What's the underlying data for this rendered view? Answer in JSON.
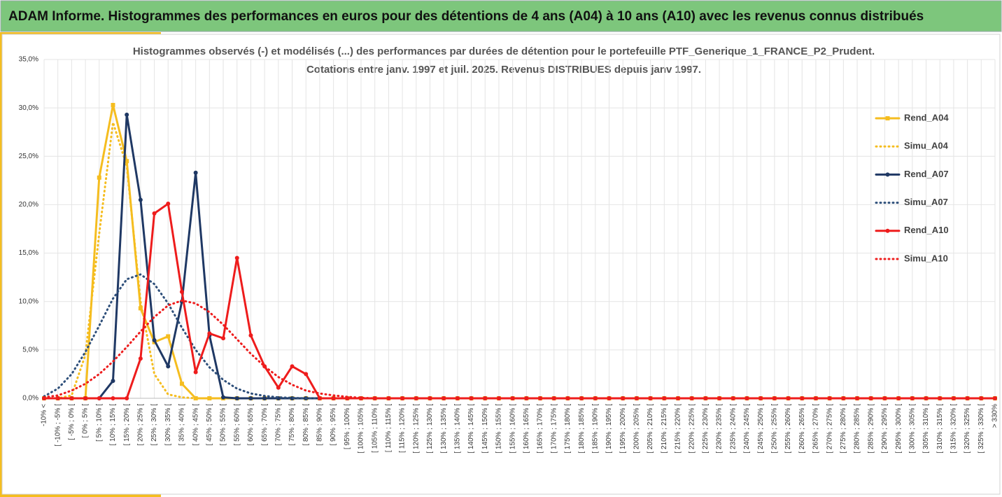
{
  "header": {
    "title": "ADAM Informe. Histogrammes des performances en euros pour des détentions de 4 ans (A04) à 10 ans (A10) avec les revenus connus distribués"
  },
  "chart_data": {
    "type": "line",
    "title": "Histogrammes observés (-) et modélisés (...) des performances par durées de détention pour le portefeuille PTF_Generique_1_FRANCE_P2_Prudent.",
    "subtitle": "Cotations entre janv. 1997 et juil. 2025. Revenus DISTRIBUES depuis janv 1997.",
    "categories": [
      "-10% <",
      "[ -10% ; -5% [",
      "[ -5% ; 0% [",
      "[ 0% ; 5% [",
      "[ 5% ; 10% [",
      "[ 10% ; 15% [",
      "[ 15% ; 20% [",
      "[ 20% ; 25% [",
      "[ 25% ; 30% [",
      "[ 30% ; 35% [",
      "[ 35% ; 40% [",
      "[ 40% ; 45% [",
      "[ 45% ; 50% [",
      "[ 50% ; 55% [",
      "[ 55% ; 60% [",
      "[ 60% ; 65% [",
      "[ 65% ; 70% [",
      "[ 70% ; 75% [",
      "[ 75% ; 80% [",
      "[ 80% ; 85% [",
      "[ 85% ; 90% [",
      "[ 90% ; 95% [",
      "[ 95% ; 100% [",
      "[ 100% ; 105% [",
      "[ 105% ; 110% [",
      "[ 110% ; 115% [",
      "[ 115% ; 120% [",
      "[ 120% ; 125% [",
      "[ 125% ; 130% [",
      "[ 130% ; 135% [",
      "[ 135% ; 140% [",
      "[ 140% ; 145% [",
      "[ 145% ; 150% [",
      "[ 150% ; 155% [",
      "[ 155% ; 160% [",
      "[ 160% ; 165% [",
      "[ 165% ; 170% [",
      "[ 170% ; 175% [",
      "[ 175% ; 180% [",
      "[ 180% ; 185% [",
      "[ 185% ; 190% [",
      "[ 190% ; 195% [",
      "[ 195% ; 200% [",
      "[ 200% ; 205% [",
      "[ 205% ; 210% [",
      "[ 210% ; 215% [",
      "[ 215% ; 220% [",
      "[ 220% ; 225% [",
      "[ 225% ; 230% [",
      "[ 230% ; 235% [",
      "[ 235% ; 240% [",
      "[ 240% ; 245% [",
      "[ 245% ; 250% [",
      "[ 250% ; 255% [",
      "[ 255% ; 260% [",
      "[ 260% ; 265% [",
      "[ 265% ; 270% [",
      "[ 270% ; 275% [",
      "[ 275% ; 280% [",
      "[ 280% ; 285% [",
      "[ 285% ; 290% [",
      "[ 290% ; 295% [",
      "[ 295% ; 300% [",
      "[ 300% ; 305% [",
      "[ 305% ; 310% [",
      "[ 310% ; 315% [",
      "[ 315% ; 320% [",
      "[ 320% ; 325% [",
      "[ 325% ; 330% [",
      "> 330%"
    ],
    "series": [
      {
        "name": "Rend_A04",
        "color": "#f5bd1f",
        "dash": "solid",
        "marker": "square",
        "values": [
          0,
          0,
          0,
          0,
          22.8,
          30.3,
          24.5,
          9.3,
          5.8,
          6.4,
          1.5,
          0,
          0,
          0,
          0,
          0,
          0,
          0,
          0,
          0,
          0,
          0,
          0,
          0,
          0,
          0,
          0,
          0,
          0,
          0,
          0,
          0,
          0,
          0,
          0,
          0,
          0,
          0,
          0,
          0,
          0,
          0,
          0,
          0,
          0,
          0,
          0,
          0,
          0,
          0,
          0,
          0,
          0,
          0,
          0,
          0,
          0,
          0,
          0,
          0,
          0,
          0,
          0,
          0,
          0,
          0,
          0,
          0,
          0,
          0
        ]
      },
      {
        "name": "Simu_A04",
        "color": "#f5bd1f",
        "dash": "dot",
        "marker": "none",
        "values": [
          0,
          0,
          0.3,
          4.5,
          17,
          28.5,
          24,
          10,
          2.5,
          0.4,
          0.1,
          0,
          0,
          0,
          0,
          0,
          0,
          0,
          0,
          0,
          0,
          0,
          0,
          0,
          0,
          0,
          0,
          0,
          0,
          0,
          0,
          0,
          0,
          0,
          0,
          0,
          0,
          0,
          0,
          0,
          0,
          0,
          0,
          0,
          0,
          0,
          0,
          0,
          0,
          0,
          0,
          0,
          0,
          0,
          0,
          0,
          0,
          0,
          0,
          0,
          0,
          0,
          0,
          0,
          0,
          0,
          0,
          0,
          0,
          0
        ]
      },
      {
        "name": "Rend_A07",
        "color": "#1f3864",
        "dash": "solid",
        "marker": "circle",
        "values": [
          0,
          0,
          0,
          0,
          0,
          1.8,
          29.3,
          20.5,
          6.0,
          3.3,
          10.0,
          23.3,
          6.5,
          0.1,
          0,
          0,
          0,
          0,
          0,
          0,
          0,
          0,
          0,
          0,
          0,
          0,
          0,
          0,
          0,
          0,
          0,
          0,
          0,
          0,
          0,
          0,
          0,
          0,
          0,
          0,
          0,
          0,
          0,
          0,
          0,
          0,
          0,
          0,
          0,
          0,
          0,
          0,
          0,
          0,
          0,
          0,
          0,
          0,
          0,
          0,
          0,
          0,
          0,
          0,
          0,
          0,
          0,
          0,
          0,
          0
        ]
      },
      {
        "name": "Simu_A07",
        "color": "#2e4f7a",
        "dash": "dot",
        "marker": "none",
        "values": [
          0.2,
          1.0,
          2.5,
          4.8,
          7.5,
          10.3,
          12.3,
          12.8,
          11.8,
          9.8,
          7.3,
          5.0,
          3.2,
          1.9,
          1.0,
          0.5,
          0.25,
          0.1,
          0.05,
          0,
          0,
          0,
          0,
          0,
          0,
          0,
          0,
          0,
          0,
          0,
          0,
          0,
          0,
          0,
          0,
          0,
          0,
          0,
          0,
          0,
          0,
          0,
          0,
          0,
          0,
          0,
          0,
          0,
          0,
          0,
          0,
          0,
          0,
          0,
          0,
          0,
          0,
          0,
          0,
          0,
          0,
          0,
          0,
          0,
          0,
          0,
          0,
          0,
          0,
          0
        ]
      },
      {
        "name": "Rend_A10",
        "color": "#ee1c1c",
        "dash": "solid",
        "marker": "circle",
        "values": [
          0,
          0,
          0,
          0,
          0,
          0,
          0,
          4.1,
          19.1,
          20.1,
          11.0,
          2.7,
          6.7,
          6.2,
          14.5,
          6.5,
          3.3,
          1.1,
          3.3,
          2.5,
          0,
          0,
          0,
          0,
          0,
          0,
          0,
          0,
          0,
          0,
          0,
          0,
          0,
          0,
          0,
          0,
          0,
          0,
          0,
          0,
          0,
          0,
          0,
          0,
          0,
          0,
          0,
          0,
          0,
          0,
          0,
          0,
          0,
          0,
          0,
          0,
          0,
          0,
          0,
          0,
          0,
          0,
          0,
          0,
          0,
          0,
          0,
          0,
          0,
          0
        ]
      },
      {
        "name": "Simu_A10",
        "color": "#ee1c1c",
        "dash": "dot",
        "marker": "none",
        "values": [
          0.1,
          0.3,
          0.8,
          1.5,
          2.5,
          3.8,
          5.3,
          6.9,
          8.4,
          9.6,
          10.1,
          9.8,
          8.9,
          7.6,
          6.1,
          4.6,
          3.3,
          2.2,
          1.4,
          0.8,
          0.5,
          0.3,
          0.15,
          0.05,
          0,
          0,
          0,
          0,
          0,
          0,
          0,
          0,
          0,
          0,
          0,
          0,
          0,
          0,
          0,
          0,
          0,
          0,
          0,
          0,
          0,
          0,
          0,
          0,
          0,
          0,
          0,
          0,
          0,
          0,
          0,
          0,
          0,
          0,
          0,
          0,
          0,
          0,
          0,
          0,
          0,
          0,
          0,
          0,
          0,
          0
        ]
      }
    ],
    "ylim": [
      0,
      35
    ],
    "yticks": [
      {
        "value": 0,
        "label": "0,0%"
      },
      {
        "value": 5,
        "label": "5,0%"
      },
      {
        "value": 10,
        "label": "10,0%"
      },
      {
        "value": 15,
        "label": "15,0%"
      },
      {
        "value": 20,
        "label": "20,0%"
      },
      {
        "value": 25,
        "label": "25,0%"
      },
      {
        "value": 30,
        "label": "30,0%"
      },
      {
        "value": 35,
        "label": "35,0%"
      }
    ],
    "grid": true,
    "legend": "right"
  }
}
